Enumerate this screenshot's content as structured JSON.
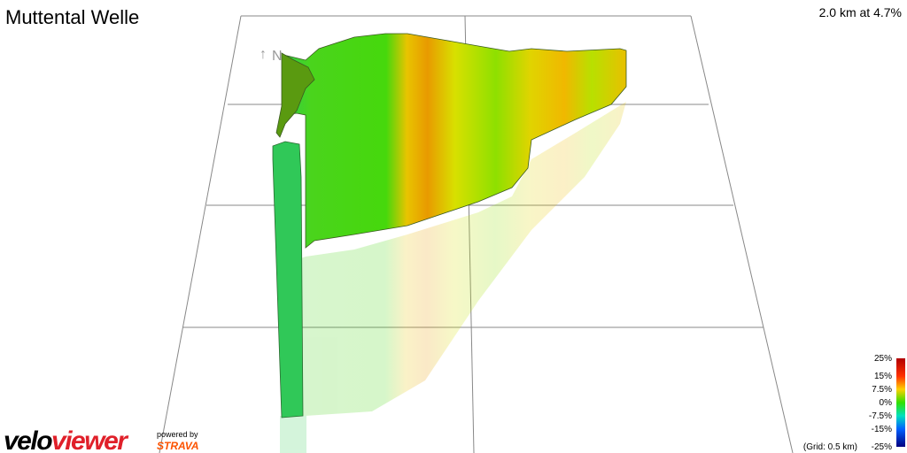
{
  "header": {
    "title": "Muttental Welle",
    "summary": "2.0 km at 4.7%"
  },
  "compass": {
    "label": "N"
  },
  "legend": {
    "labels": [
      "25%",
      "15%",
      "7.5%",
      "0%",
      "-7.5%",
      "-15%",
      "-25%"
    ],
    "grid_note": "(Grid: 0.5 km)"
  },
  "branding": {
    "logo_part1": "velo",
    "logo_part2": "viewer",
    "powered_by": "powered by",
    "partner": "STRAVA"
  }
}
